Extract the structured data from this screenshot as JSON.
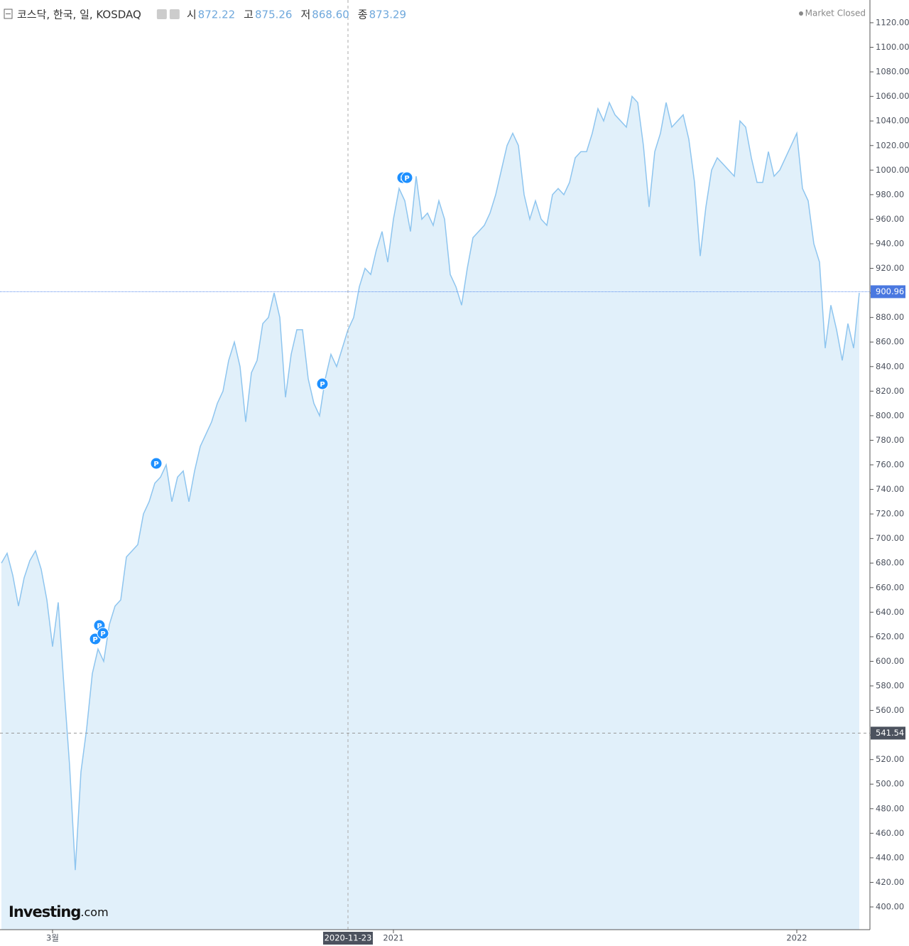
{
  "chart_data": {
    "type": "line",
    "title": "코스닥, 한국, 일, KOSDAQ",
    "ohlc": [
      {
        "label": "시",
        "value": "872.22"
      },
      {
        "label": "고",
        "value": "875.26"
      },
      {
        "label": "저",
        "value": "868.60"
      },
      {
        "label": "종",
        "value": "873.29"
      }
    ],
    "status": "Market Closed",
    "brand": {
      "name": "Investing",
      "suffix": ".com"
    },
    "marker_label": "P",
    "color": "#8ec5ef",
    "fill_color": "#e1f0fa",
    "categories": [
      null,
      null,
      null,
      null,
      null,
      null,
      null,
      null,
      null,
      "3월",
      null,
      null,
      null,
      null,
      null,
      null,
      null,
      null,
      null,
      null,
      null,
      null,
      null,
      null,
      null,
      null,
      null,
      null,
      null,
      null,
      null,
      null,
      null,
      null,
      null,
      null,
      null,
      null,
      null,
      null,
      null,
      null,
      null,
      null,
      null,
      null,
      null,
      null,
      null,
      null,
      null,
      null,
      null,
      null,
      null,
      null,
      null,
      null,
      null,
      null,
      null,
      "2020-11-23",
      null,
      null,
      null,
      null,
      null,
      null,
      null,
      "2021",
      null,
      null,
      null,
      null,
      null,
      null,
      null,
      null,
      null,
      null,
      null,
      null,
      null,
      null,
      null,
      null,
      null,
      null,
      null,
      null,
      null,
      null,
      null,
      null,
      null,
      null,
      null,
      null,
      null,
      null,
      null,
      null,
      null,
      null,
      null,
      null,
      null,
      null,
      null,
      null,
      null,
      null,
      null,
      null,
      null,
      null,
      null,
      null,
      null,
      null,
      null,
      null,
      null,
      null,
      null,
      null,
      null,
      null,
      null,
      null,
      null,
      null,
      null,
      null,
      null,
      null,
      null,
      null,
      null,
      null,
      "2022",
      null,
      null,
      null,
      null,
      null,
      null,
      null,
      null,
      null,
      null,
      null
    ],
    "values": [
      680,
      688,
      670,
      645,
      668,
      682,
      690,
      675,
      650,
      612,
      648,
      580,
      515,
      430,
      510,
      545,
      590,
      610,
      600,
      630,
      645,
      650,
      685,
      690,
      695,
      720,
      730,
      745,
      750,
      760,
      730,
      750,
      755,
      730,
      755,
      775,
      785,
      795,
      810,
      820,
      845,
      860,
      840,
      795,
      835,
      845,
      875,
      880,
      900,
      880,
      815,
      850,
      870,
      870,
      830,
      810,
      800,
      830,
      850,
      840,
      855,
      870,
      880,
      905,
      920,
      915,
      935,
      950,
      925,
      960,
      985,
      975,
      950,
      995,
      960,
      965,
      955,
      975,
      960,
      915,
      905,
      890,
      920,
      945,
      950,
      955,
      965,
      980,
      1000,
      1020,
      1030,
      1020,
      980,
      960,
      975,
      960,
      955,
      980,
      985,
      980,
      990,
      1010,
      1015,
      1015,
      1030,
      1050,
      1040,
      1055,
      1045,
      1040,
      1035,
      1060,
      1055,
      1020,
      970,
      1015,
      1030,
      1055,
      1035,
      1040,
      1045,
      1025,
      990,
      930,
      970,
      1000,
      1010,
      1005,
      1000,
      995,
      1040,
      1035,
      1010,
      990,
      990,
      1015,
      995,
      1000,
      1010,
      1020,
      1030,
      985,
      975,
      940,
      925,
      855,
      890,
      870,
      845,
      875,
      855,
      900
    ],
    "crosshair_category": 61,
    "last_price": 900.96,
    "crosshair_price": 541.54,
    "ylim": [
      381.5,
      1138.5
    ],
    "yticks": [
      {
        "value": 400,
        "label": "400.00"
      },
      {
        "value": 420,
        "label": "420.00"
      },
      {
        "value": 440,
        "label": "440.00"
      },
      {
        "value": 460,
        "label": "460.00"
      },
      {
        "value": 480,
        "label": "480.00"
      },
      {
        "value": 500,
        "label": "500.00"
      },
      {
        "value": 520,
        "label": "520.00"
      },
      {
        "value": 540,
        "label": "540.00"
      },
      {
        "value": 560,
        "label": "560.00"
      },
      {
        "value": 580,
        "label": "580.00"
      },
      {
        "value": 600,
        "label": "600.00"
      },
      {
        "value": 620,
        "label": "620.00"
      },
      {
        "value": 640,
        "label": "640.00"
      },
      {
        "value": 660,
        "label": "660.00"
      },
      {
        "value": 680,
        "label": "680.00"
      },
      {
        "value": 700,
        "label": "700.00"
      },
      {
        "value": 720,
        "label": "720.00"
      },
      {
        "value": 740,
        "label": "740.00"
      },
      {
        "value": 760,
        "label": "760.00"
      },
      {
        "value": 780,
        "label": "780.00"
      },
      {
        "value": 800,
        "label": "800.00"
      },
      {
        "value": 820,
        "label": "820.00"
      },
      {
        "value": 840,
        "label": "840.00"
      },
      {
        "value": 860,
        "label": "860.00"
      },
      {
        "value": 880,
        "label": "880.00"
      },
      {
        "value": 900,
        "label": "900.00"
      },
      {
        "value": 920,
        "label": "920.00"
      },
      {
        "value": 940,
        "label": "940.00"
      },
      {
        "value": 960,
        "label": "960.00"
      },
      {
        "value": 980,
        "label": "980.00"
      },
      {
        "value": 1000,
        "label": "1000.00"
      },
      {
        "value": 1020,
        "label": "1020.00"
      },
      {
        "value": 1040,
        "label": "1040.00"
      },
      {
        "value": 1060,
        "label": "1060.00"
      },
      {
        "value": 1080,
        "label": "1080.00"
      },
      {
        "value": 1100,
        "label": "1100.00"
      },
      {
        "value": 1120,
        "label": "1120.00"
      }
    ]
  }
}
